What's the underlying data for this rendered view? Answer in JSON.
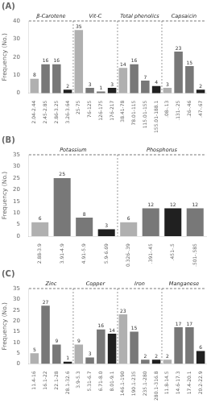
{
  "chart_data": [
    {
      "type": "bar",
      "title": "(A)",
      "y_label": "Frequency (No.)",
      "categories": [
        "2.04-2.44",
        "2.45-2.85",
        "2.86-3.25",
        "3.26-3.64",
        "25-75",
        "76-125",
        "126-175",
        "176-217",
        "38.41-78",
        "78.01-115",
        "115.01-155",
        "155.01-188.1",
        ".08-.13",
        ".131-.25",
        ".26-.46",
        ".47-.67"
      ],
      "values": [
        8,
        16,
        16,
        2,
        35,
        3,
        1,
        3,
        14,
        16,
        7,
        4,
        3,
        23,
        15,
        2
      ],
      "colors": [
        "#b0b0b0",
        "#787878",
        "#787878",
        "#202020",
        "#b0b0b0",
        "#787878",
        "#787878",
        "#202020",
        "#b0b0b0",
        "#787878",
        "#787878",
        "#202020",
        "#b0b0b0",
        "#787878",
        "#787878",
        "#202020"
      ],
      "annotations": [
        "β-Carotene",
        "Vit-C",
        "Total phenolics",
        "Capsaicin"
      ],
      "ylim": [
        0,
        40
      ],
      "yticks": [
        0,
        10,
        20,
        30,
        40
      ],
      "grid": false,
      "data_labels": true
    },
    {
      "type": "bar",
      "title": "(B)",
      "y_label": "Frequency (No.)",
      "categories": [
        "2.88-3.9",
        "3.91-4.9",
        "4.91-5.9",
        "5.9-6.69",
        "0.326-.39",
        ".391-.45",
        ".451-.5",
        ".501-.585"
      ],
      "values": [
        6,
        25,
        8,
        3,
        6,
        12,
        12,
        12
      ],
      "colors": [
        "#b0b0b0",
        "#787878",
        "#787878",
        "#202020",
        "#b0b0b0",
        "#787878",
        "#202020",
        "#787878"
      ],
      "annotations": [
        "Potassium",
        "Phosphorus"
      ],
      "ylim": [
        0,
        35
      ],
      "yticks": [
        0,
        5,
        10,
        15,
        20,
        25,
        30,
        35
      ],
      "grid": false,
      "data_labels": true
    },
    {
      "type": "bar",
      "title": "(C)",
      "y_label": "Frequency (No.)",
      "categories": [
        "11.4-16",
        "16.1-22",
        "22.1-28",
        "28.1-32.6",
        "3.9-5.3",
        "5.31-6.7",
        "6.71-8.0",
        "8.01-9.1",
        "146.1-190",
        "190.1-235",
        "235.1-280",
        "280.1-316.8",
        "11.8-14.5",
        "14.6-17.3",
        "17.4-20.1",
        "20.2-22.9"
      ],
      "values": [
        5,
        27,
        9,
        1,
        9,
        3,
        16,
        14,
        23,
        15,
        2,
        2,
        2,
        17,
        17,
        6
      ],
      "colors": [
        "#b0b0b0",
        "#787878",
        "#787878",
        "#202020",
        "#b0b0b0",
        "#787878",
        "#787878",
        "#202020",
        "#b0b0b0",
        "#787878",
        "#787878",
        "#202020",
        "#b0b0b0",
        "#787878",
        "#787878",
        "#202020"
      ],
      "annotations": [
        "Zinc",
        "Copper",
        "Iron",
        "Manganese"
      ],
      "ylim": [
        0,
        35
      ],
      "yticks": [
        0,
        5,
        10,
        15,
        20,
        25,
        30,
        35
      ],
      "grid": false,
      "data_labels": true
    }
  ]
}
